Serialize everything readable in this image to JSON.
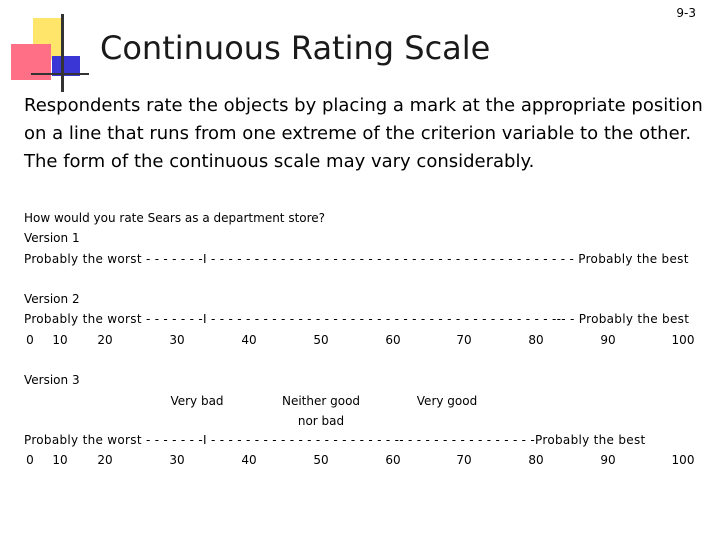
{
  "slide_number": "9-3",
  "title": "Continuous Rating Scale",
  "intro_lines": [
    "Respondents rate the objects by placing a mark at the appropriate position",
    "on a line that runs from one extreme of the criterion variable to the other.",
    "The form of the continuous scale may vary considerably."
  ],
  "question": "How would you rate Sears as a department store?",
  "versions": [
    {
      "label": "Version 1",
      "scale_line": "Probably the worst - - - - - - -I - - - - - - - - - - - - - - - - - - - - - - - - - - - - - - - - - - - - - - - - - - Probably the best"
    },
    {
      "label": "Version 2",
      "scale_line": "Probably the worst - - - - - - -I - - - - - - - - - - - - - - - - - - - - - - - - - - - - - -  - - - - - - - - - --- - Probably the best",
      "numbers": [
        "0",
        "10",
        "20",
        "30",
        "40",
        "50",
        "60",
        "70",
        "80",
        "90",
        "100"
      ]
    },
    {
      "label": "Version 3",
      "anchors": [
        "Very bad",
        "Neither good",
        "nor bad",
        "Very good"
      ],
      "scale_line": "Probably the worst - - - - - - -I - - - - - - - - - - - - -  - - - - - - - - -- - - - - - - - - - - - - - - -Probably the best",
      "numbers": [
        "0",
        "10",
        "20",
        "30",
        "40",
        "50",
        "60",
        "70",
        "80",
        "90",
        "100"
      ]
    }
  ],
  "decoration_colors": {
    "yellow": "#ffe66b",
    "red": "#ff6f86",
    "blue": "#3a36d6",
    "line": "#333333"
  }
}
